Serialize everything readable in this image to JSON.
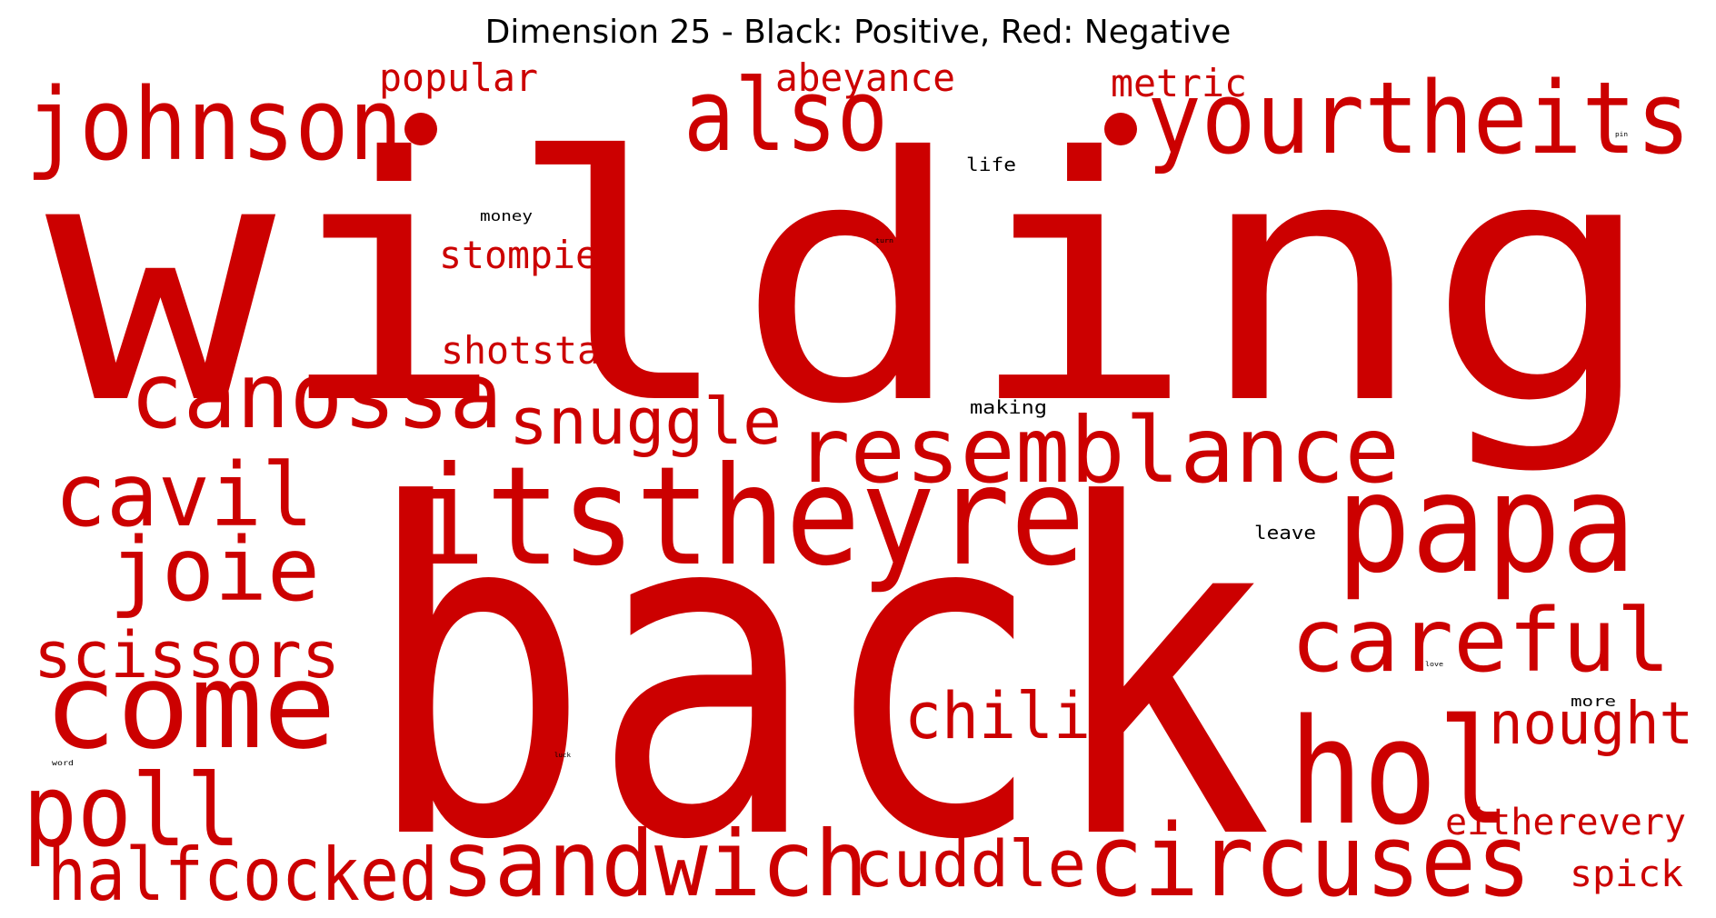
{
  "title": "Dimension 25 - Black: Positive, Red: Negative",
  "colors": {
    "positive": "#000000",
    "negative": "#cc0000",
    "background": "#ffffff"
  },
  "words": [
    {
      "text": "wilding",
      "sign": "negative",
      "weight": 1.0
    },
    {
      "text": "back",
      "sign": "negative",
      "weight": 0.98
    },
    {
      "text": "itstheyre",
      "sign": "negative",
      "weight": 0.42
    },
    {
      "text": "papa",
      "sign": "negative",
      "weight": 0.42
    },
    {
      "text": "hol",
      "sign": "negative",
      "weight": 0.42
    },
    {
      "text": "come",
      "sign": "negative",
      "weight": 0.36
    },
    {
      "text": "johnson",
      "sign": "negative",
      "weight": 0.33
    },
    {
      "text": "also",
      "sign": "negative",
      "weight": 0.33
    },
    {
      "text": "yourtheits",
      "sign": "negative",
      "weight": 0.33
    },
    {
      "text": "circuses",
      "sign": "negative",
      "weight": 0.33
    },
    {
      "text": "resemblance",
      "sign": "negative",
      "weight": 0.3
    },
    {
      "text": "canossa",
      "sign": "negative",
      "weight": 0.3
    },
    {
      "text": "poll",
      "sign": "negative",
      "weight": 0.3
    },
    {
      "text": "sandwich",
      "sign": "negative",
      "weight": 0.3
    },
    {
      "text": "cavil",
      "sign": "negative",
      "weight": 0.28
    },
    {
      "text": "joie",
      "sign": "negative",
      "weight": 0.28
    },
    {
      "text": "careful",
      "sign": "negative",
      "weight": 0.28
    },
    {
      "text": "halfcocked",
      "sign": "negative",
      "weight": 0.25
    },
    {
      "text": "snuggle",
      "sign": "negative",
      "weight": 0.22
    },
    {
      "text": "scissors",
      "sign": "negative",
      "weight": 0.22
    },
    {
      "text": "chili",
      "sign": "negative",
      "weight": 0.22
    },
    {
      "text": "cuddle",
      "sign": "negative",
      "weight": 0.22
    },
    {
      "text": "nought",
      "sign": "negative",
      "weight": 0.2
    },
    {
      "text": "stompies",
      "sign": "negative",
      "weight": 0.14
    },
    {
      "text": "shotstab",
      "sign": "negative",
      "weight": 0.14
    },
    {
      "text": "popular",
      "sign": "negative",
      "weight": 0.14
    },
    {
      "text": "abeyance",
      "sign": "negative",
      "weight": 0.14
    },
    {
      "text": "metric",
      "sign": "negative",
      "weight": 0.14
    },
    {
      "text": "eitherevery",
      "sign": "negative",
      "weight": 0.14
    },
    {
      "text": "spick",
      "sign": "negative",
      "weight": 0.14
    },
    {
      "text": "life",
      "sign": "positive",
      "weight": 0.07
    },
    {
      "text": "making",
      "sign": "positive",
      "weight": 0.07
    },
    {
      "text": "leave",
      "sign": "positive",
      "weight": 0.07
    },
    {
      "text": "money",
      "sign": "positive",
      "weight": 0.06
    },
    {
      "text": "more",
      "sign": "positive",
      "weight": 0.06
    },
    {
      "text": "pin",
      "sign": "positive",
      "weight": 0.02
    },
    {
      "text": "turn",
      "sign": "positive",
      "weight": 0.02
    },
    {
      "text": "love",
      "sign": "positive",
      "weight": 0.02
    },
    {
      "text": "word",
      "sign": "positive",
      "weight": 0.02
    },
    {
      "text": "luck",
      "sign": "positive",
      "weight": 0.02
    }
  ]
}
